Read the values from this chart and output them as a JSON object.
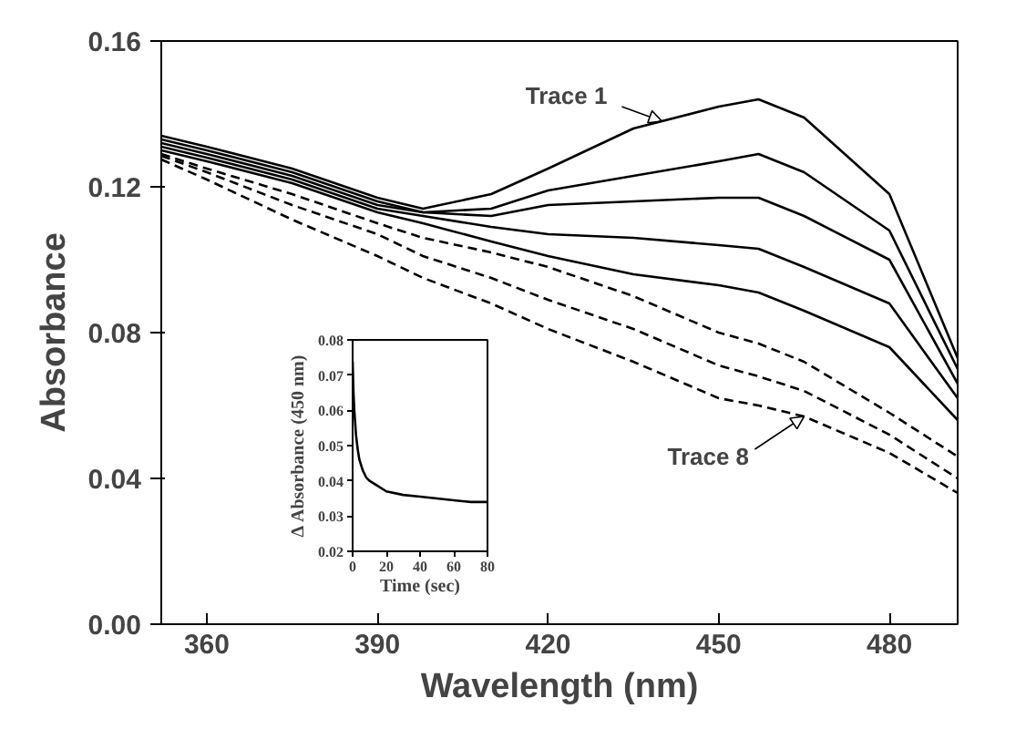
{
  "chart_data": [
    {
      "type": "line",
      "xlabel": "Wavelength (nm)",
      "ylabel": "Absorbance",
      "x": [
        352,
        360,
        375,
        390,
        398,
        410,
        420,
        435,
        450,
        457,
        465,
        480,
        492
      ],
      "series": [
        {
          "color": "#000000",
          "line_style": "solid",
          "values": [
            0.134,
            0.131,
            0.125,
            0.117,
            0.114,
            0.118,
            0.125,
            0.136,
            0.142,
            0.144,
            0.139,
            0.118,
            0.073
          ]
        },
        {
          "color": "#000000",
          "line_style": "solid",
          "values": [
            0.133,
            0.13,
            0.124,
            0.116,
            0.113,
            0.114,
            0.119,
            0.123,
            0.127,
            0.129,
            0.124,
            0.108,
            0.07
          ]
        },
        {
          "color": "#000000",
          "line_style": "solid",
          "values": [
            0.132,
            0.129,
            0.123,
            0.115,
            0.113,
            0.112,
            0.115,
            0.116,
            0.117,
            0.117,
            0.112,
            0.1,
            0.066
          ]
        },
        {
          "color": "#000000",
          "line_style": "solid",
          "values": [
            0.131,
            0.128,
            0.122,
            0.114,
            0.112,
            0.109,
            0.107,
            0.106,
            0.104,
            0.103,
            0.098,
            0.088,
            0.062
          ]
        },
        {
          "color": "#000000",
          "line_style": "solid",
          "values": [
            0.13,
            0.127,
            0.121,
            0.113,
            0.11,
            0.105,
            0.101,
            0.096,
            0.093,
            0.091,
            0.086,
            0.076,
            0.056
          ]
        },
        {
          "color": "#000000",
          "line_style": "dashed",
          "values": [
            0.129,
            0.125,
            0.118,
            0.11,
            0.106,
            0.102,
            0.098,
            0.09,
            0.08,
            0.077,
            0.072,
            0.058,
            0.046
          ]
        },
        {
          "color": "#000000",
          "line_style": "dashed",
          "values": [
            0.1285,
            0.124,
            0.115,
            0.107,
            0.101,
            0.095,
            0.089,
            0.081,
            0.071,
            0.068,
            0.064,
            0.052,
            0.04
          ]
        },
        {
          "color": "#000000",
          "line_style": "dashed",
          "values": [
            0.1275,
            0.122,
            0.111,
            0.101,
            0.095,
            0.088,
            0.081,
            0.072,
            0.062,
            0.06,
            0.057,
            0.047,
            0.036
          ]
        }
      ],
      "xlim": [
        352,
        492
      ],
      "ylim": [
        0,
        0.16
      ],
      "xticks": [
        360,
        390,
        420,
        450,
        480
      ],
      "yticks": [
        {
          "value": 0,
          "label": "0.00"
        },
        {
          "value": 0.04,
          "label": "0.04"
        },
        {
          "value": 0.08,
          "label": "0.08"
        },
        {
          "value": 0.12,
          "label": "0.12"
        },
        {
          "value": 0.16,
          "label": "0.16"
        }
      ],
      "annotations": [
        {
          "text": "Trace 1",
          "x": 440,
          "y": 0.138
        },
        {
          "text": "Trace 8",
          "x": 465,
          "y": 0.057
        }
      ]
    },
    {
      "type": "line",
      "xlabel": "Time (sec)",
      "ylabel": "Δ Absorbance (450 nm)",
      "x": [
        0,
        0.5,
        1,
        2,
        3,
        4,
        6,
        8,
        10,
        15,
        20,
        30,
        40,
        50,
        60,
        70,
        80
      ],
      "series": [
        {
          "color": "#000000",
          "values": [
            0.074,
            0.065,
            0.06,
            0.053,
            0.049,
            0.046,
            0.043,
            0.041,
            0.04,
            0.0385,
            0.037,
            0.036,
            0.0355,
            0.035,
            0.0345,
            0.034,
            0.034
          ]
        }
      ],
      "xlim": [
        0,
        80
      ],
      "ylim": [
        0.02,
        0.08
      ],
      "xticks": [
        0,
        20,
        40,
        60,
        80
      ],
      "yticks": [
        0.02,
        0.03,
        0.04,
        0.05,
        0.06,
        0.07,
        0.08
      ]
    }
  ]
}
